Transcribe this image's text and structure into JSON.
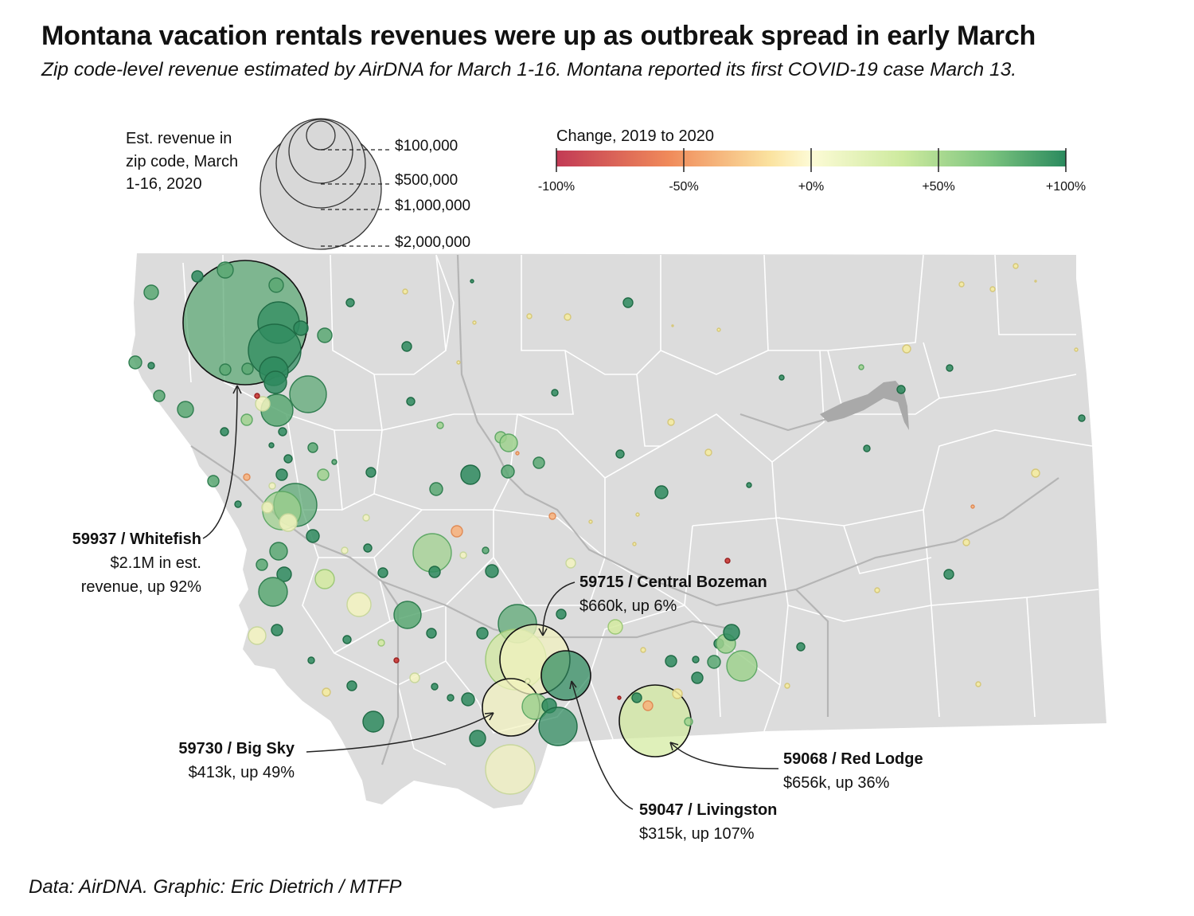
{
  "title": "Montana vacation rentals revenues were up as outbreak spread in early March",
  "subtitle": "Zip code-level revenue estimated by AirDNA for March 1-16. Montana reported its first COVID-19 case March 13.",
  "size_legend": {
    "title": "Est. revenue in zip code, March 1-16, 2020",
    "labels": [
      "$100,000",
      "$500,000",
      "$1,000,000",
      "$2,000,000"
    ]
  },
  "color_legend": {
    "title": "Change, 2019 to 2020",
    "ticks": [
      "-100%",
      "-50%",
      "+0%",
      "+50%",
      "+100%"
    ],
    "colors": [
      "#c23a55",
      "#f08a5a",
      "#fbe8a8",
      "#fdfbd6",
      "#c7e89a",
      "#6fbd7a",
      "#2e8a5e"
    ]
  },
  "annotations": [
    {
      "id": "whitefish",
      "zip": "59937 / Whitefish",
      "line1": "$2.1M in est.",
      "line2": "revenue, up 92%"
    },
    {
      "id": "bozeman",
      "zip": "59715 / Central Bozeman",
      "line1": "$660k, up 6%"
    },
    {
      "id": "bigsky",
      "zip": "59730 / Big Sky",
      "line1": "$413k, up 49%"
    },
    {
      "id": "redlodge",
      "zip": "59068 / Red Lodge",
      "line1": "$656k, up 36%"
    },
    {
      "id": "livingston",
      "zip": "59047 / Livingston",
      "line1": "$315k, up 107%"
    }
  ],
  "footer": "Data: AirDNA. Graphic: Eric Dietrich / MTFP"
}
